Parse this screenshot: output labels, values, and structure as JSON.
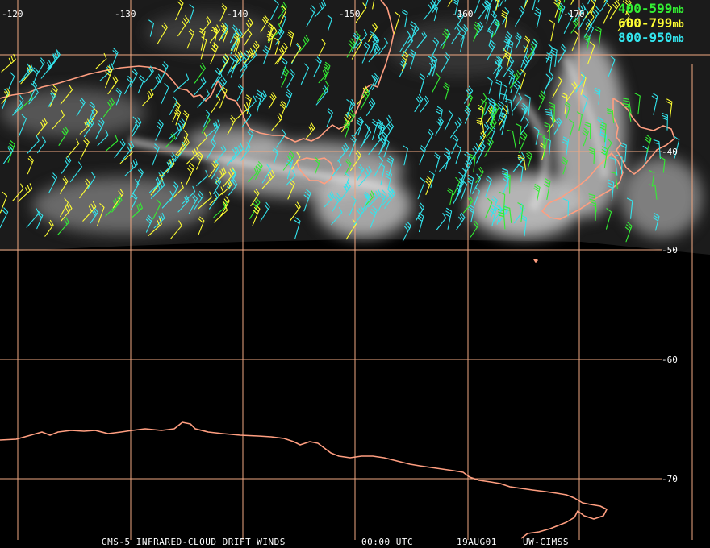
{
  "colors": {
    "grid": "#f0a882",
    "coast": "#ff9e80",
    "level_400_599": "#33ee33",
    "level_600_799": "#ffff33",
    "level_800_950": "#33e5ee",
    "label": "#ffffff",
    "background": "#000000"
  },
  "longitude_labels": [
    "-120",
    "-130",
    "-140",
    "-150",
    "-160",
    "-170"
  ],
  "latitude_labels": [
    "-40",
    "-50",
    "-60",
    "-70"
  ],
  "legend": [
    {
      "label": "400-599",
      "unit": "mb",
      "color": "#33ee33"
    },
    {
      "label": "600-799",
      "unit": "mb",
      "color": "#ffff33"
    },
    {
      "label": "800-950",
      "unit": "mb",
      "color": "#33e5ee"
    }
  ],
  "caption": {
    "product": "GMS-5 INFRARED-CLOUD DRIFT WINDS",
    "time": "00:00 UTC",
    "date": "19AUG01",
    "source": "UW-CIMSS"
  }
}
